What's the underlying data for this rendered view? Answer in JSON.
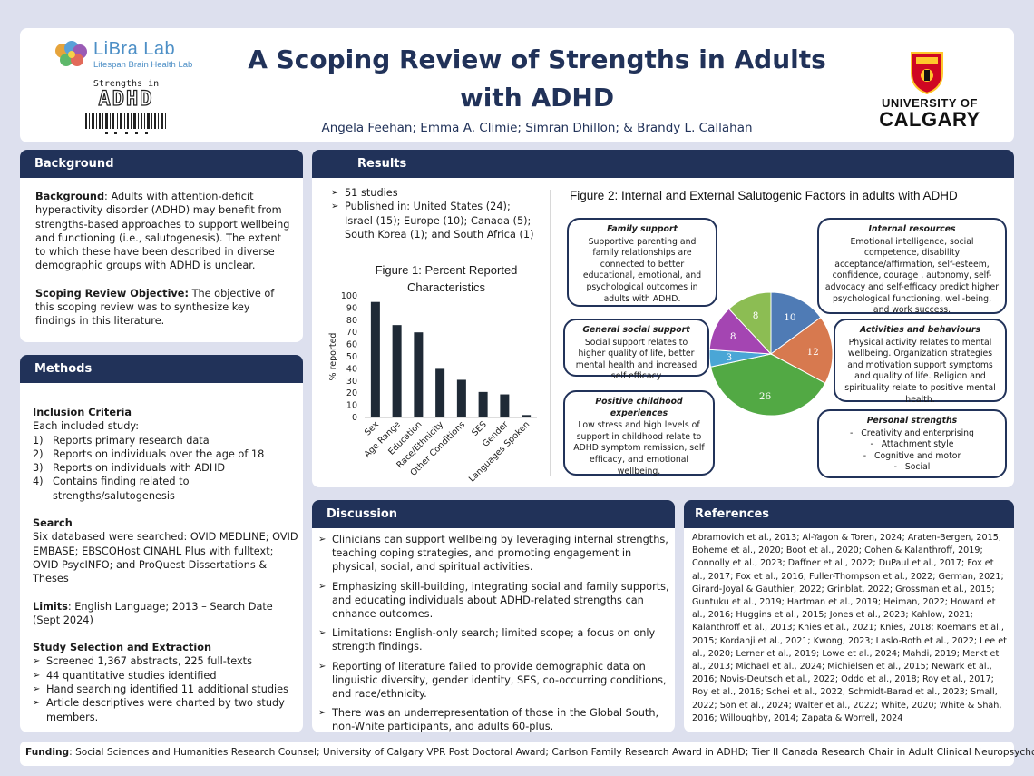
{
  "header": {
    "lab_name": "LiBra Lab",
    "lab_subtitle": "Lifespan Brain Health Lab",
    "logo_text_1": "Strengths in",
    "logo_text_2": "ADHD",
    "title_line1": "A Scoping Review of Strengths in Adults",
    "title_line2": "with ADHD",
    "authors": "Angela Feehan; Emma A. Climie; Simran Dhillon; & Brandy L. Callahan",
    "university_line1": "UNIVERSITY OF",
    "university_line2": "CALGARY"
  },
  "background": {
    "heading": "Background",
    "p1_label": "Background",
    "p1_text": ": Adults with attention-deficit hyperactivity disorder (ADHD) may benefit from strengths-based approaches to support wellbeing and functioning (i.e., salutogenesis). The extent to which these have been described in diverse demographic groups with ADHD is unclear.",
    "p2_label": "Scoping Review Objective:",
    "p2_text": " The objective of this scoping review was to synthesize key findings in this literature."
  },
  "methods": {
    "heading": "Methods",
    "inclusion_title": "Inclusion Criteria",
    "inclusion_intro": "Each included study:",
    "criteria": [
      {
        "num": "1)",
        "text": "Reports primary research data"
      },
      {
        "num": "2)",
        "text": "Reports on individuals over the age of 18"
      },
      {
        "num": "3)",
        "text": "Reports on individuals with ADHD"
      },
      {
        "num": "4)",
        "text": "Contains finding related to strengths/salutogenesis"
      }
    ],
    "search_title": "Search",
    "search_text": "Six databased were searched: OVID MEDLINE; OVID EMBASE; EBSCOHost CINAHL Plus with fulltext; OVID PsycINFO; and ProQuest Dissertations & Theses",
    "limits_label": "Limits",
    "limits_text": ": English Language; 2013 – Search Date (Sept 2024)",
    "selection_title": "Study Selection and Extraction",
    "selection_items": [
      "Screened 1,367 abstracts, 225 full-texts",
      "44 quantitative studies identified",
      "Hand searching identified 11 additional studies",
      "Article descriptives were charted by two study members."
    ]
  },
  "results": {
    "heading": "Results",
    "bullets": [
      "51 studies",
      "Published in: United States (24); Israel (15); Europe (10); Canada (5); South Korea (1); and South Africa (1)"
    ],
    "figure2_title": "Figure 2: Internal and External Salutogenic Factors in adults with ADHD",
    "factors": {
      "family": {
        "title": "Family support",
        "text": "Supportive parenting and family relationships are connected to better educational, emotional, and psychological outcomes in adults with ADHD."
      },
      "social": {
        "title": "General social support",
        "text": "Social support relates to higher quality of life, better mental health and increased self-efficacy"
      },
      "childhood": {
        "title": "Positive childhood experiences",
        "text": "Low stress and high levels of support in childhood relate to ADHD symptom remission, self efficacy, and emotional wellbeing."
      },
      "internal": {
        "title": "Internal resources",
        "text": "Emotional intelligence, social competence, disability acceptance/affirmation, self-esteem, confidence, courage , autonomy, self-advocacy and self-efficacy predict higher psychological functioning, well-being, and work success."
      },
      "activities": {
        "title": "Activities and behaviours",
        "text": "Physical activity relates to mental wellbeing. Organization strategies and motivation support symptoms and quality of life. Religion and spirituality relate to positive mental health."
      },
      "personal": {
        "title": "Personal strengths",
        "items": [
          "Creativity and enterprising",
          "Attachment style",
          "Cognitive and motor",
          "Social"
        ]
      }
    }
  },
  "chart_data": [
    {
      "type": "bar",
      "title": "Figure 1: Percent Reported Characteristics",
      "title_line1": "Figure 1: Percent Reported",
      "title_line2": "Characteristics",
      "xlabel": "",
      "ylabel": "% reported",
      "ylim": [
        0,
        100
      ],
      "yticks": [
        "0",
        "10",
        "20",
        "30",
        "40",
        "50",
        "60",
        "70",
        "80",
        "90",
        "100"
      ],
      "categories": [
        "Sex",
        "Age Range",
        "Education",
        "Race/Ethnicity",
        "Other Conditions",
        "SES",
        "Gender",
        "Languages Spoken"
      ],
      "values": [
        95,
        76,
        70,
        40,
        31,
        21,
        19,
        2
      ]
    },
    {
      "type": "pie",
      "title": "Figure 2: Internal and External Salutogenic Factors in adults with ADHD",
      "categories": [
        "Internal resources",
        "Activities and behaviours",
        "Positive childhood experiences",
        "General social support",
        "Family support (purple)",
        "Family support"
      ],
      "values": [
        10,
        12,
        26,
        3,
        8,
        8
      ],
      "labels": [
        "10",
        "12",
        "26",
        "3",
        "8",
        "8"
      ],
      "colors": [
        "#4f7bb5",
        "#d7794f",
        "#52a944",
        "#4aa6d6",
        "#a445b2",
        "#8cbd53"
      ]
    }
  ],
  "discussion": {
    "heading": "Discussion",
    "items": [
      "Clinicians can support wellbeing by leveraging internal strengths, teaching coping strategies, and promoting engagement in physical, social, and spiritual activities.",
      "Emphasizing skill-building, integrating social and family supports, and educating individuals about ADHD-related strengths can enhance outcomes.",
      "Limitations: English-only search; limited scope; a focus on only strength findings.",
      "Reporting of literature failed to provide demographic data on linguistic diversity, gender identity, SES, co-occurring conditions, and race/ethnicity.",
      "There was an underrepresentation of those in the Global South, non-White participants, and adults 60-plus."
    ]
  },
  "references": {
    "heading": "References",
    "text": "Abramovich et al., 2013; Al-Yagon & Toren, 2024; Araten-Bergen, 2015; Boheme et al., 2020; Boot et al., 2020; Cohen & Kalanthroff, 2019; Connolly et al., 2023; Daffner et al., 2022; DuPaul et al., 2017; Fox et al., 2017; Fox et al., 2016; Fuller-Thompson et al., 2022; German, 2021; Girard-Joyal & Gauthier, 2022; Grinblat, 2022; Grossman et al., 2015; Guntuku et al., 2019; Hartman et al., 2019; Heiman, 2022; Howard et al., 2016; Huggins et al., 2015; Jones et al., 2023; Kahlow, 2021; Kalanthroff et al., 2013; Knies et al., 2021; Knies, 2018; Koemans et al., 2015; Kordahji et al., 2021; Kwong, 2023; Laslo-Roth et al., 2022; Lee et al., 2020; Lerner et al., 2019; Lowe et al., 2024; Mahdi, 2019; Merkt et al., 2013; Michael et al., 2024; Michielsen et al., 2015; Newark et al., 2016; Novis-Deutsch et al., 2022; Oddo et al., 2018; Roy et al., 2017; Roy et al., 2016; Schei et al., 2022; Schmidt-Barad et al., 2023; Small, 2022; Son et al., 2024; Walter et al., 2022; White, 2020; White & Shah, 2016; Willoughby, 2014; Zapata & Worrell, 2024"
  },
  "funding": {
    "label": "Funding",
    "text": ": Social Sciences and Humanities Research Counsel; University of Calgary VPR Post Doctoral Award; Carlson Family Research Award in ADHD; Tier II Canada Research Chair in Adult Clinical Neuropsychology"
  },
  "colors": {
    "navy": "#213259",
    "page_bg": "#dde0ee",
    "bar": "#1f2a36",
    "ucalgary_red": "#cf0722"
  }
}
